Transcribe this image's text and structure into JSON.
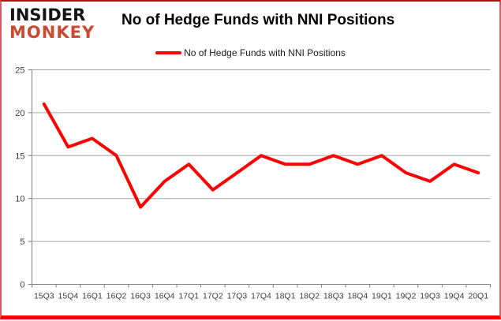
{
  "brand": {
    "line1": "INSIDER",
    "line2": "MONKEY"
  },
  "header": {
    "title": "No of Hedge Funds with NNI Positions"
  },
  "legend": {
    "label": "No of Hedge Funds with NNI Positions",
    "color": "#ff0000"
  },
  "colors": {
    "line": "#ff0000",
    "gridline": "#a6a6a6",
    "axis": "#808080",
    "tick_label": "#3d3d3d",
    "border_bottom": "#ff0000",
    "logo_red": "#c84a32"
  },
  "chart_data": {
    "type": "line",
    "title": "No of Hedge Funds with NNI Positions",
    "categories": [
      "15Q3",
      "15Q4",
      "16Q1",
      "16Q2",
      "16Q3",
      "16Q4",
      "17Q1",
      "17Q2",
      "17Q3",
      "17Q4",
      "18Q1",
      "18Q2",
      "18Q3",
      "18Q4",
      "19Q1",
      "19Q2",
      "19Q3",
      "19Q4",
      "20Q1"
    ],
    "series": [
      {
        "name": "No of Hedge Funds with NNI Positions",
        "color": "#ff0000",
        "values": [
          21,
          16,
          17,
          15,
          9,
          12,
          14,
          11,
          13,
          15,
          14,
          14,
          15,
          14,
          15,
          13,
          12,
          14,
          13
        ]
      }
    ],
    "xlabel": "",
    "ylabel": "",
    "ylim": [
      0,
      25
    ],
    "yticks": [
      0,
      5,
      10,
      15,
      20,
      25
    ],
    "grid": true,
    "legend_position": "top-center"
  }
}
